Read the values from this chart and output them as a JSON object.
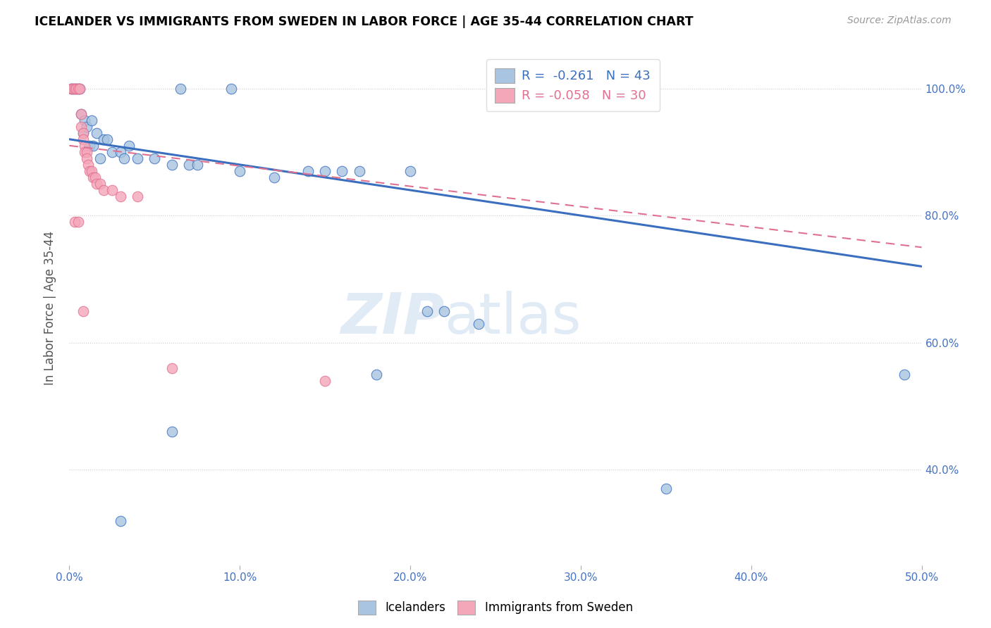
{
  "title": "ICELANDER VS IMMIGRANTS FROM SWEDEN IN LABOR FORCE | AGE 35-44 CORRELATION CHART",
  "source": "Source: ZipAtlas.com",
  "ylabel": "In Labor Force | Age 35-44",
  "xlim": [
    0.0,
    0.5
  ],
  "ylim": [
    0.25,
    1.06
  ],
  "xticks": [
    0.0,
    0.1,
    0.2,
    0.3,
    0.4,
    0.5
  ],
  "yticks": [
    0.4,
    0.6,
    0.8,
    1.0
  ],
  "xticklabels": [
    "0.0%",
    "10.0%",
    "20.0%",
    "30.0%",
    "40.0%",
    "50.0%"
  ],
  "yticklabels": [
    "40.0%",
    "60.0%",
    "80.0%",
    "100.0%"
  ],
  "blue_R": "-0.261",
  "blue_N": "43",
  "pink_R": "-0.058",
  "pink_N": "30",
  "blue_color": "#a8c4e0",
  "pink_color": "#f4a7b9",
  "blue_line_color": "#3a6fbf",
  "pink_line_color": "#e07090",
  "watermark_zip": "ZIP",
  "watermark_atlas": "atlas",
  "blue_scatter": [
    [
      0.001,
      1.0
    ],
    [
      0.002,
      1.0
    ],
    [
      0.003,
      1.0
    ],
    [
      0.004,
      1.0
    ],
    [
      0.005,
      1.0
    ],
    [
      0.006,
      1.0
    ],
    [
      0.065,
      1.0
    ],
    [
      0.095,
      1.0
    ],
    [
      0.007,
      0.96
    ],
    [
      0.008,
      0.93
    ],
    [
      0.009,
      0.95
    ],
    [
      0.01,
      0.94
    ],
    [
      0.012,
      0.91
    ],
    [
      0.013,
      0.95
    ],
    [
      0.014,
      0.91
    ],
    [
      0.016,
      0.93
    ],
    [
      0.018,
      0.89
    ],
    [
      0.02,
      0.92
    ],
    [
      0.022,
      0.92
    ],
    [
      0.025,
      0.9
    ],
    [
      0.03,
      0.9
    ],
    [
      0.032,
      0.89
    ],
    [
      0.035,
      0.91
    ],
    [
      0.04,
      0.89
    ],
    [
      0.05,
      0.89
    ],
    [
      0.06,
      0.88
    ],
    [
      0.07,
      0.88
    ],
    [
      0.075,
      0.88
    ],
    [
      0.1,
      0.87
    ],
    [
      0.12,
      0.86
    ],
    [
      0.14,
      0.87
    ],
    [
      0.15,
      0.87
    ],
    [
      0.16,
      0.87
    ],
    [
      0.17,
      0.87
    ],
    [
      0.2,
      0.87
    ],
    [
      0.21,
      0.65
    ],
    [
      0.22,
      0.65
    ],
    [
      0.24,
      0.63
    ],
    [
      0.18,
      0.55
    ],
    [
      0.49,
      0.55
    ],
    [
      0.06,
      0.46
    ],
    [
      0.35,
      0.37
    ],
    [
      0.03,
      0.32
    ]
  ],
  "pink_scatter": [
    [
      0.001,
      1.0
    ],
    [
      0.002,
      1.0
    ],
    [
      0.003,
      1.0
    ],
    [
      0.004,
      1.0
    ],
    [
      0.005,
      1.0
    ],
    [
      0.006,
      1.0
    ],
    [
      0.007,
      0.96
    ],
    [
      0.007,
      0.94
    ],
    [
      0.008,
      0.93
    ],
    [
      0.008,
      0.92
    ],
    [
      0.009,
      0.91
    ],
    [
      0.009,
      0.9
    ],
    [
      0.01,
      0.9
    ],
    [
      0.01,
      0.89
    ],
    [
      0.011,
      0.88
    ],
    [
      0.012,
      0.87
    ],
    [
      0.013,
      0.87
    ],
    [
      0.014,
      0.86
    ],
    [
      0.015,
      0.86
    ],
    [
      0.016,
      0.85
    ],
    [
      0.018,
      0.85
    ],
    [
      0.02,
      0.84
    ],
    [
      0.025,
      0.84
    ],
    [
      0.03,
      0.83
    ],
    [
      0.04,
      0.83
    ],
    [
      0.003,
      0.79
    ],
    [
      0.005,
      0.79
    ],
    [
      0.008,
      0.65
    ],
    [
      0.06,
      0.56
    ],
    [
      0.15,
      0.54
    ]
  ],
  "blue_trendline": [
    [
      0.0,
      0.92
    ],
    [
      0.5,
      0.72
    ]
  ],
  "pink_trendline": [
    [
      0.0,
      0.91
    ],
    [
      0.5,
      0.75
    ]
  ]
}
